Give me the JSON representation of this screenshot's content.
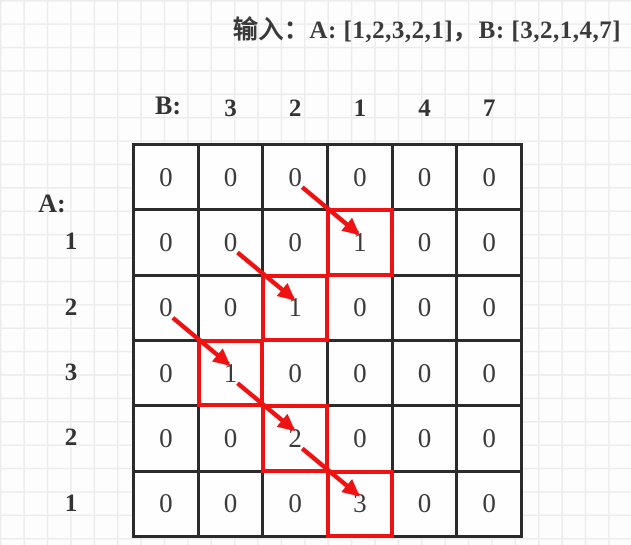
{
  "title": "输入：A: [1,2,3,2,1]，B: [3,2,1,4,7]",
  "labels": {
    "a": "A:",
    "b": "B:"
  },
  "sequences": {
    "a": [
      "1",
      "2",
      "3",
      "2",
      "1"
    ],
    "b": [
      "3",
      "2",
      "1",
      "4",
      "7"
    ]
  },
  "dp_grid": {
    "rows": [
      [
        "0",
        "0",
        "0",
        "0",
        "0",
        "0"
      ],
      [
        "0",
        "0",
        "0",
        "1",
        "0",
        "0"
      ],
      [
        "0",
        "0",
        "1",
        "0",
        "0",
        "0"
      ],
      [
        "0",
        "1",
        "0",
        "0",
        "0",
        "0"
      ],
      [
        "0",
        "0",
        "2",
        "0",
        "0",
        "0"
      ],
      [
        "0",
        "0",
        "0",
        "3",
        "0",
        "0"
      ]
    ],
    "highlighted": [
      {
        "row": 1,
        "col": 3
      },
      {
        "row": 2,
        "col": 2
      },
      {
        "row": 3,
        "col": 1
      },
      {
        "row": 4,
        "col": 2
      },
      {
        "row": 5,
        "col": 3
      }
    ],
    "arrows": [
      {
        "from": {
          "row": 0,
          "col": 2
        },
        "to": {
          "row": 1,
          "col": 3
        }
      },
      {
        "from": {
          "row": 1,
          "col": 1
        },
        "to": {
          "row": 2,
          "col": 2
        }
      },
      {
        "from": {
          "row": 2,
          "col": 0
        },
        "to": {
          "row": 3,
          "col": 1
        }
      },
      {
        "from": {
          "row": 3,
          "col": 1
        },
        "to": {
          "row": 4,
          "col": 2
        }
      },
      {
        "from": {
          "row": 4,
          "col": 2
        },
        "to": {
          "row": 5,
          "col": 3
        }
      }
    ]
  },
  "colors": {
    "highlight_red": "#ee1212",
    "grid_border": "#2b2b2b",
    "text": "#3c3c3c"
  }
}
